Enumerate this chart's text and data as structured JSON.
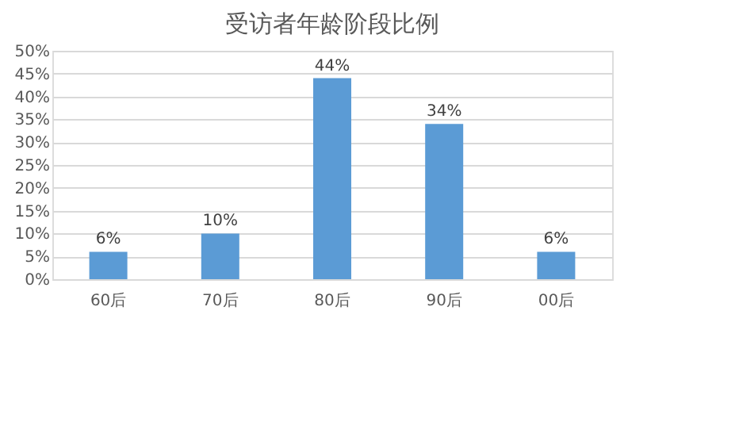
{
  "chart_data": {
    "type": "bar",
    "title": "受访者年龄阶段比例",
    "categories": [
      "60后",
      "70后",
      "80后",
      "90后",
      "00后"
    ],
    "values": [
      6,
      10,
      44,
      34,
      6
    ],
    "value_labels": [
      "6%",
      "10%",
      "44%",
      "34%",
      "6%"
    ],
    "color": "#5b9bd5",
    "ylim": [
      0,
      50
    ],
    "yticks": [
      {
        "value": 0,
        "label": "0%"
      },
      {
        "value": 5,
        "label": "5%"
      },
      {
        "value": 10,
        "label": "10%"
      },
      {
        "value": 15,
        "label": "15%"
      },
      {
        "value": 20,
        "label": "20%"
      },
      {
        "value": 25,
        "label": "25%"
      },
      {
        "value": 30,
        "label": "30%"
      },
      {
        "value": 35,
        "label": "35%"
      },
      {
        "value": 40,
        "label": "40%"
      },
      {
        "value": 45,
        "label": "45%"
      },
      {
        "value": 50,
        "label": "50%"
      }
    ],
    "grid": "y"
  }
}
